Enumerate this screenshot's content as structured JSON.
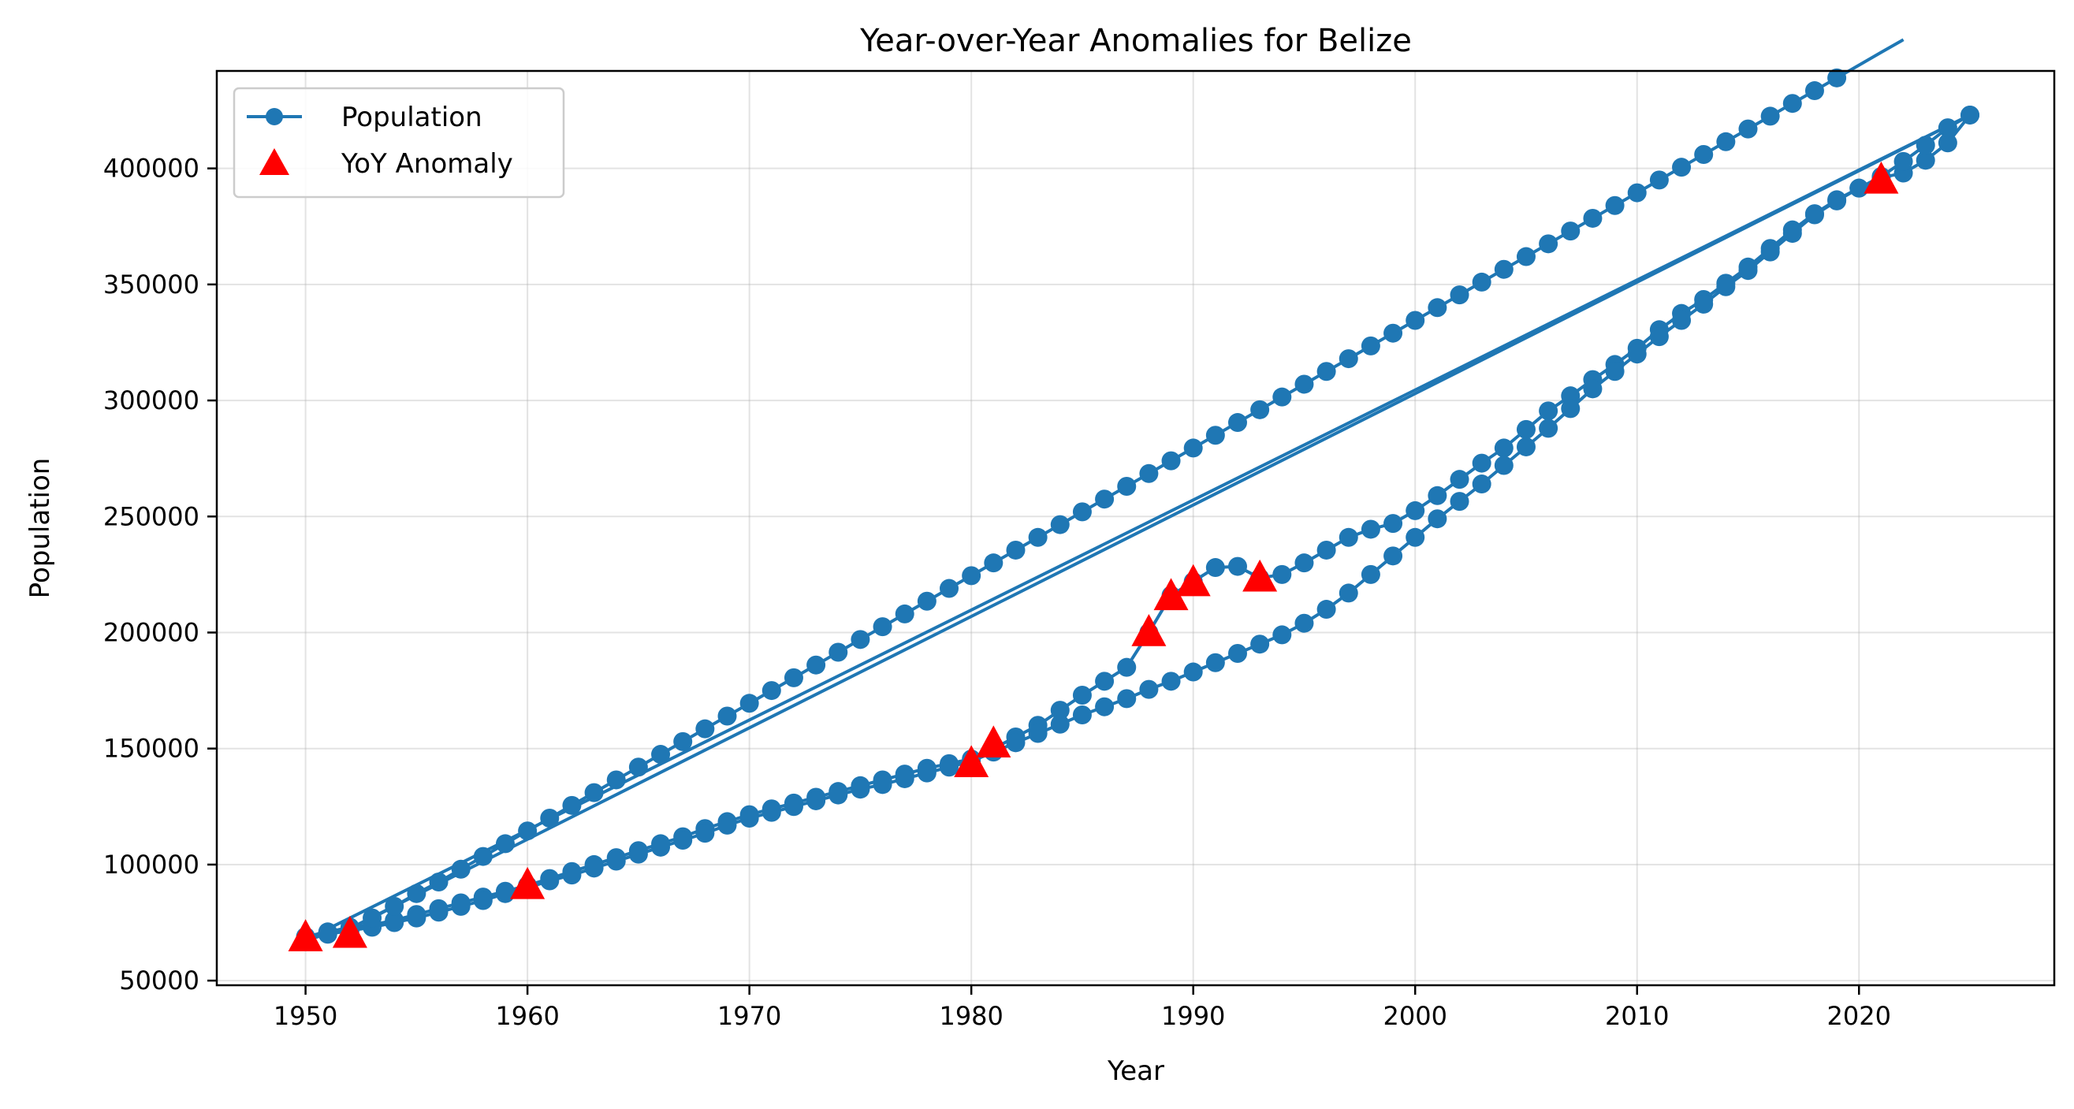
{
  "chart_data": {
    "type": "line",
    "title": "Year-over-Year Anomalies for Belize",
    "xlabel": "Year",
    "ylabel": "Population",
    "xlim": [
      1946,
      2028.8
    ],
    "ylim": [
      48000,
      442000
    ],
    "xticks": [
      1950,
      1960,
      1970,
      1980,
      1990,
      2000,
      2010,
      2020
    ],
    "yticks": [
      50000,
      100000,
      150000,
      200000,
      250000,
      300000,
      350000,
      400000
    ],
    "grid": true,
    "legend_position": "upper-left",
    "colors": {
      "line": "#1f77b4",
      "anomaly": "#ff0000"
    },
    "series": [
      {
        "name": "Population",
        "style": "line-with-circle-markers",
        "x": [
          1950,
          1951,
          1952,
          1953,
          1954,
          1955,
          1956,
          1957,
          1958,
          1959,
          1960,
          1961,
          1962,
          1963,
          1964,
          1965,
          1966,
          1967,
          1968,
          1969,
          1970,
          1971,
          1972,
          1973,
          1974,
          1975,
          1976,
          1977,
          1978,
          1979,
          1980,
          1981,
          1982,
          1983,
          1984,
          1985,
          1986,
          1987,
          1988,
          1989,
          1990,
          1991,
          1992,
          1993,
          1994,
          1995,
          1996,
          1997,
          1998,
          1999,
          2000,
          2001,
          2002,
          2003,
          2004,
          2005,
          2006,
          2007,
          2008,
          2009,
          2010,
          2011,
          2012,
          2013,
          2014,
          2015,
          2016,
          2017,
          2018,
          2019,
          2020,
          2021,
          2022,
          2023,
          2024,
          2025,
          1950,
          1951,
          1952,
          1953,
          1954,
          1955,
          1956,
          1957,
          1958,
          1959,
          1960,
          1961,
          1962,
          1963,
          1964,
          1965,
          1966,
          1967,
          1968,
          1969,
          1970,
          1971,
          1972,
          1973,
          1974,
          1975,
          1976,
          1977,
          1978,
          1979,
          1980,
          1981,
          1982,
          1983,
          1984,
          1985,
          1986,
          1987,
          1988,
          1989,
          1990,
          1991,
          1992,
          1993,
          1994,
          1995,
          1996,
          1997,
          1998,
          1999,
          2000,
          2001,
          2002,
          2003,
          2004,
          2005,
          2006,
          2007,
          2008,
          2009,
          2010,
          2011,
          2012,
          2013,
          2014,
          2015,
          2016,
          2017,
          2018,
          2019,
          2020,
          2021,
          2022,
          2023,
          2024,
          2025,
          1952,
          1953,
          1954,
          1955,
          1956,
          1957,
          1958,
          1959,
          1960,
          1961,
          1962,
          1963,
          1964,
          1965,
          1966,
          1967,
          1968,
          1969,
          1970,
          1971,
          1972,
          1973,
          1974,
          1975,
          1976,
          1977,
          1978,
          1979,
          1980,
          1981,
          1982,
          1983,
          1984,
          1985,
          1986,
          1987,
          1988,
          1989,
          1990,
          1991,
          1992,
          1993,
          1994,
          1995,
          1996,
          1997,
          1998,
          1999,
          2000,
          2001,
          2002,
          2003,
          2004,
          2005,
          2006,
          2007,
          2008,
          2009,
          2010,
          2011,
          2012,
          2013,
          2014,
          2015,
          2016,
          2017,
          2018,
          2019,
          2020,
          2021,
          2022
        ],
        "y": [
          69000,
          71000,
          73000,
          74000,
          76000,
          78500,
          81000,
          83500,
          86000,
          88500,
          91000,
          94000,
          97000,
          100000,
          103000,
          106000,
          109000,
          112000,
          115500,
          118500,
          121500,
          124000,
          126500,
          129000,
          131500,
          134000,
          136500,
          139000,
          141500,
          143500,
          145500,
          150000,
          155000,
          160000,
          166500,
          173000,
          179000,
          185000,
          200000,
          216000,
          222000,
          228000,
          228500,
          223500,
          225000,
          230000,
          235500,
          241000,
          244500,
          247000,
          252500,
          259000,
          266000,
          273000,
          279500,
          287500,
          295500,
          302000,
          309000,
          315500,
          322500,
          330500,
          337500,
          343500,
          350500,
          357500,
          365500,
          373500,
          380500,
          386500,
          391500,
          396000,
          398000,
          403500,
          411000,
          423000,
          67500,
          70000,
          71500,
          73000,
          75000,
          77000,
          79500,
          82000,
          84500,
          87500,
          90000,
          93000,
          95500,
          98500,
          101500,
          104500,
          107500,
          110500,
          113500,
          117000,
          120000,
          122500,
          125000,
          127500,
          130000,
          132500,
          134500,
          137000,
          139500,
          142000,
          144500,
          148500,
          152500,
          156500,
          160500,
          164500,
          168000,
          171500,
          175500,
          179000,
          183000,
          187000,
          191000,
          195000,
          199000,
          204000,
          210000,
          217000,
          225000,
          233000,
          241000,
          249000,
          256500,
          264000,
          272000,
          280000,
          288000,
          296500,
          305000,
          312500,
          320000,
          327500,
          334500,
          341500,
          349000,
          356000,
          364000,
          372000,
          380000,
          386000,
          391500,
          396500,
          403000,
          410000,
          417500,
          423000,
          72500,
          77000,
          82000,
          87500,
          92500,
          98000,
          103500,
          109000,
          114500,
          120000,
          125500,
          131000,
          136500,
          142000,
          147500,
          153000,
          158500,
          164000,
          169500,
          175000,
          180500,
          186000,
          191500,
          197000,
          202500,
          208000,
          213500,
          219000,
          224500,
          230000,
          235500,
          241000,
          246500,
          252000,
          257500,
          263000,
          268500,
          274000,
          279500,
          285000,
          290500,
          296000,
          301500,
          307000,
          312500,
          318000,
          323500,
          329000,
          334500,
          340000,
          345500,
          351000,
          356500,
          362000,
          367500,
          373000,
          378500,
          384000,
          389500,
          395000,
          400500,
          406000,
          411500,
          417000,
          422500,
          428000,
          433500,
          439000,
          444500,
          450000,
          455500
        ]
      },
      {
        "name": "YoY Anomaly",
        "style": "red-triangle-markers",
        "x": [
          1950,
          1952,
          1960,
          1980,
          1981,
          1988,
          1989,
          1990,
          1993,
          2021
        ],
        "y": [
          69000,
          70500,
          91500,
          144000,
          152500,
          200500,
          216000,
          222000,
          224000,
          395500
        ]
      }
    ]
  }
}
